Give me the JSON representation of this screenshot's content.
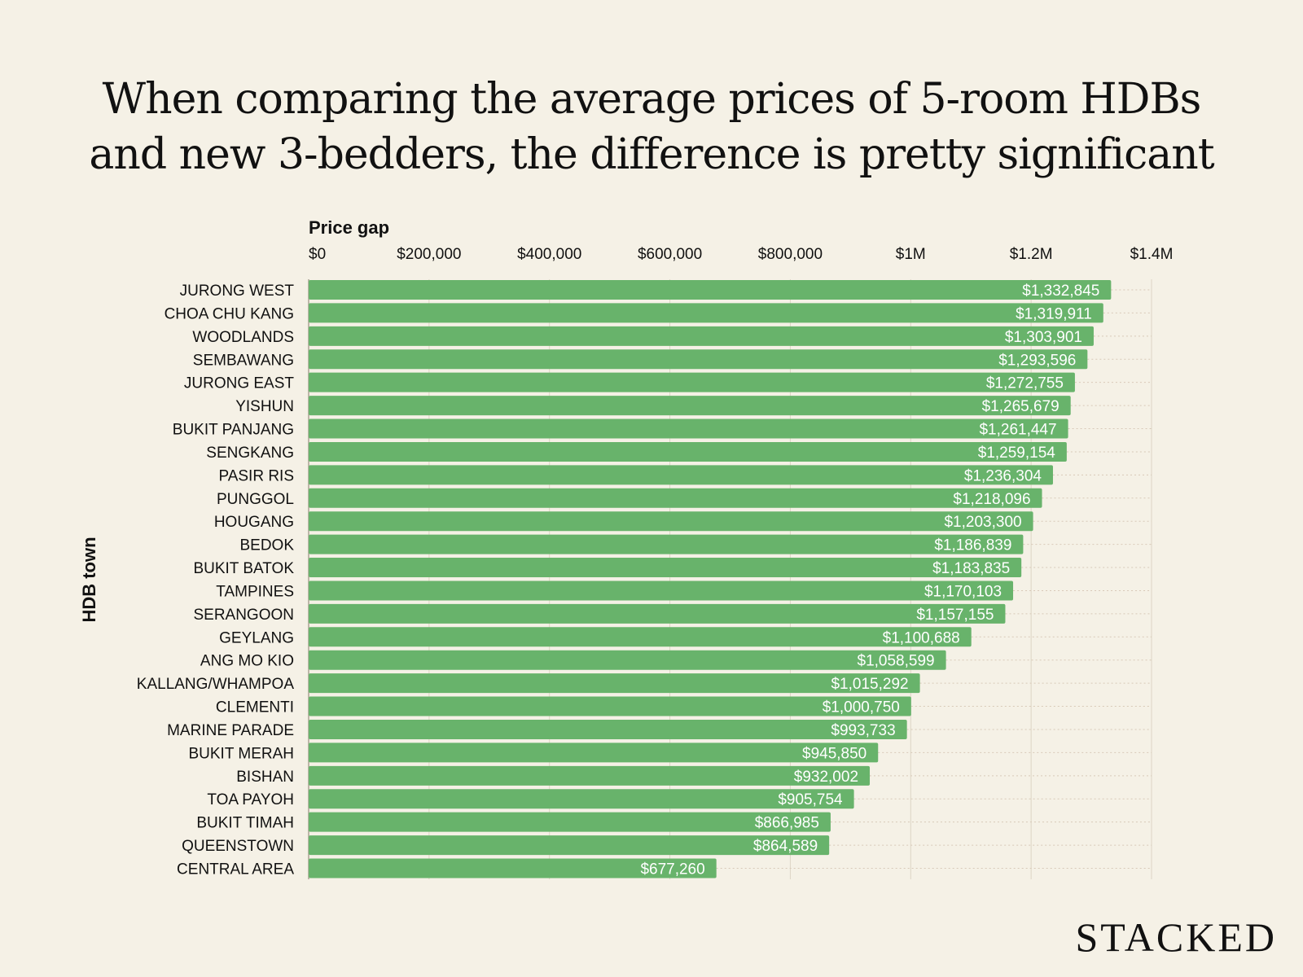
{
  "title_lines": [
    "When comparing the average prices of 5-room HDBs",
    "and new 3-bedders, the difference is pretty significant"
  ],
  "brand": "STACKED",
  "colors": {
    "bar": "#68b36b",
    "background": "#f5f1e6",
    "grid": "#ddd5c5",
    "label_on_bar": "#ffffff"
  },
  "chart_data": {
    "type": "bar",
    "orientation": "horizontal",
    "title": "When comparing the average prices of 5-room HDBs and new 3-bedders, the difference is pretty significant",
    "xlabel": "Price gap",
    "ylabel": "HDB town",
    "xlim": [
      0,
      1400000
    ],
    "x_axis_position": "top",
    "grid": true,
    "xticks": [
      0,
      200000,
      400000,
      600000,
      800000,
      1000000,
      1200000,
      1400000
    ],
    "xtick_labels": [
      "$0",
      "$200,000",
      "$400,000",
      "$600,000",
      "$800,000",
      "$1M",
      "$1.2M",
      "$1.4M"
    ],
    "categories": [
      "JURONG WEST",
      "CHOA CHU KANG",
      "WOODLANDS",
      "SEMBAWANG",
      "JURONG EAST",
      "YISHUN",
      "BUKIT PANJANG",
      "SENGKANG",
      "PASIR RIS",
      "PUNGGOL",
      "HOUGANG",
      "BEDOK",
      "BUKIT BATOK",
      "TAMPINES",
      "SERANGOON",
      "GEYLANG",
      "ANG MO KIO",
      "KALLANG/WHAMPOA",
      "CLEMENTI",
      "MARINE PARADE",
      "BUKIT MERAH",
      "BISHAN",
      "TOA PAYOH",
      "BUKIT TIMAH",
      "QUEENSTOWN",
      "CENTRAL AREA"
    ],
    "values": [
      1332845,
      1319911,
      1303901,
      1293596,
      1272755,
      1265679,
      1261447,
      1259154,
      1236304,
      1218096,
      1203300,
      1186839,
      1183835,
      1170103,
      1157155,
      1100688,
      1058599,
      1015292,
      1000750,
      993733,
      945850,
      932002,
      905754,
      866985,
      864589,
      677260
    ],
    "data_labels": [
      "$1,332,845",
      "$1,319,911",
      "$1,303,901",
      "$1,293,596",
      "$1,272,755",
      "$1,265,679",
      "$1,261,447",
      "$1,259,154",
      "$1,236,304",
      "$1,218,096",
      "$1,203,300",
      "$1,186,839",
      "$1,183,835",
      "$1,170,103",
      "$1,157,155",
      "$1,100,688",
      "$1,058,599",
      "$1,015,292",
      "$1,000,750",
      "$993,733",
      "$945,850",
      "$932,002",
      "$905,754",
      "$866,985",
      "$864,589",
      "$677,260"
    ]
  }
}
